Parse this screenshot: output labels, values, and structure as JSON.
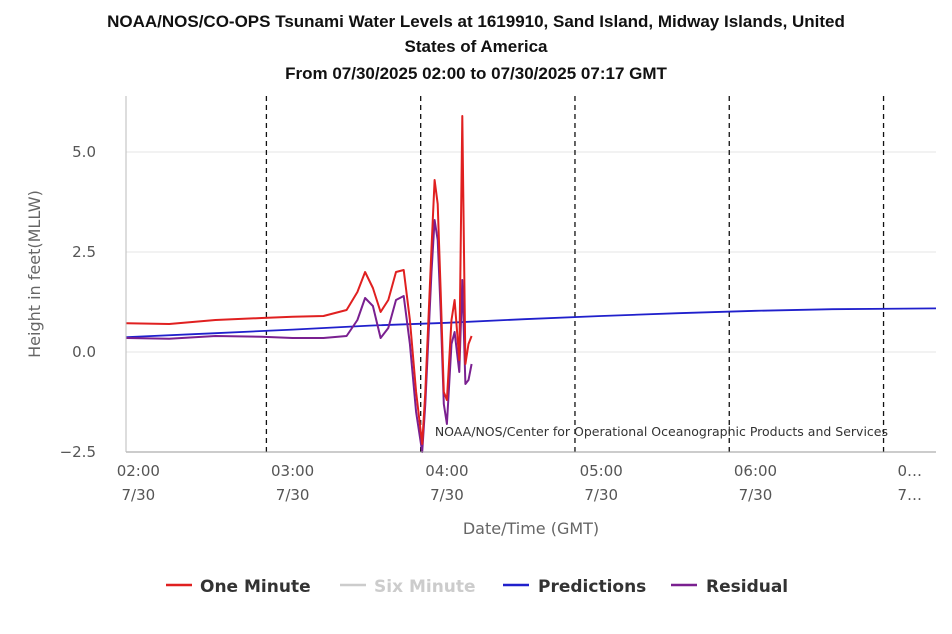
{
  "chart_data": {
    "type": "line",
    "title_lines": [
      "NOAA/NOS/CO-OPS Tsunami Water Levels at 1619910, Sand Island, Midway Islands, United",
      "States of America"
    ],
    "subtitle": "From 07/30/2025 02:00 to 07/30/2025 07:17 GMT",
    "xlabel": "Date/Time (GMT)",
    "ylabel": "Height in feet(MLLW)",
    "xlim": [
      1.92,
      7.17
    ],
    "ylim": [
      -2.5,
      6.4
    ],
    "yticks": [
      {
        "value": 5.0,
        "label": "5.0"
      },
      {
        "value": 2.5,
        "label": "2.5"
      },
      {
        "value": 0.0,
        "label": "0.0"
      },
      {
        "value": -2.5,
        "label": "−2.5"
      }
    ],
    "xticks": [
      {
        "value": 2.0,
        "time": "02:00",
        "date": "7/30"
      },
      {
        "value": 3.0,
        "time": "03:00",
        "date": "7/30"
      },
      {
        "value": 4.0,
        "time": "04:00",
        "date": "7/30"
      },
      {
        "value": 5.0,
        "time": "05:00",
        "date": "7/30"
      },
      {
        "value": 6.0,
        "time": "06:00",
        "date": "7/30"
      },
      {
        "value": 7.0,
        "time": "0…",
        "date": "7…"
      }
    ],
    "vlines": [
      2.83,
      3.83,
      4.83,
      5.83,
      6.83
    ],
    "credit": "NOAA/NOS/Center for Operational Oceanographic Products and Services",
    "series": [
      {
        "name": "Predictions",
        "color": "#2020cc",
        "x": [
          1.92,
          2.5,
          3.0,
          3.5,
          4.0,
          4.5,
          5.0,
          5.5,
          6.0,
          6.5,
          7.17
        ],
        "values": [
          0.37,
          0.47,
          0.56,
          0.66,
          0.73,
          0.82,
          0.9,
          0.97,
          1.03,
          1.07,
          1.09
        ]
      },
      {
        "name": "Residual",
        "color": "#7a2090",
        "x": [
          1.92,
          2.2,
          2.5,
          2.8,
          3.0,
          3.2,
          3.35,
          3.42,
          3.47,
          3.52,
          3.57,
          3.62,
          3.67,
          3.72,
          3.76,
          3.8,
          3.84,
          3.86,
          3.9,
          3.92,
          3.94,
          3.96,
          3.98,
          4.0,
          4.03,
          4.05,
          4.08,
          4.1,
          4.12,
          4.14,
          4.16
        ],
        "values": [
          0.35,
          0.33,
          0.4,
          0.38,
          0.35,
          0.35,
          0.4,
          0.8,
          1.35,
          1.15,
          0.35,
          0.6,
          1.3,
          1.4,
          0.2,
          -1.5,
          -2.5,
          -1.3,
          2.0,
          3.3,
          2.8,
          1.0,
          -1.3,
          -1.8,
          0.2,
          0.5,
          -0.5,
          1.8,
          -0.8,
          -0.7,
          -0.3
        ]
      },
      {
        "name": "One Minute",
        "color": "#e02020",
        "x": [
          1.92,
          2.2,
          2.5,
          2.8,
          3.0,
          3.2,
          3.35,
          3.42,
          3.47,
          3.52,
          3.57,
          3.62,
          3.67,
          3.72,
          3.76,
          3.8,
          3.84,
          3.86,
          3.9,
          3.92,
          3.94,
          3.96,
          3.98,
          4.0,
          4.03,
          4.05,
          4.08,
          4.1,
          4.12,
          4.14,
          4.16
        ],
        "values": [
          0.72,
          0.7,
          0.8,
          0.85,
          0.88,
          0.9,
          1.05,
          1.5,
          2.0,
          1.6,
          1.0,
          1.3,
          2.0,
          2.05,
          0.8,
          -1.0,
          -2.3,
          -1.0,
          2.6,
          4.3,
          3.7,
          1.5,
          -1.0,
          -1.2,
          0.8,
          1.3,
          -0.2,
          5.9,
          -0.3,
          0.2,
          0.4
        ]
      }
    ],
    "legend": [
      {
        "name": "One Minute",
        "color": "#e02020",
        "enabled": true
      },
      {
        "name": "Six Minute",
        "color": "#cccccc",
        "enabled": false
      },
      {
        "name": "Predictions",
        "color": "#2020cc",
        "enabled": true
      },
      {
        "name": "Residual",
        "color": "#7a2090",
        "enabled": true
      }
    ]
  }
}
